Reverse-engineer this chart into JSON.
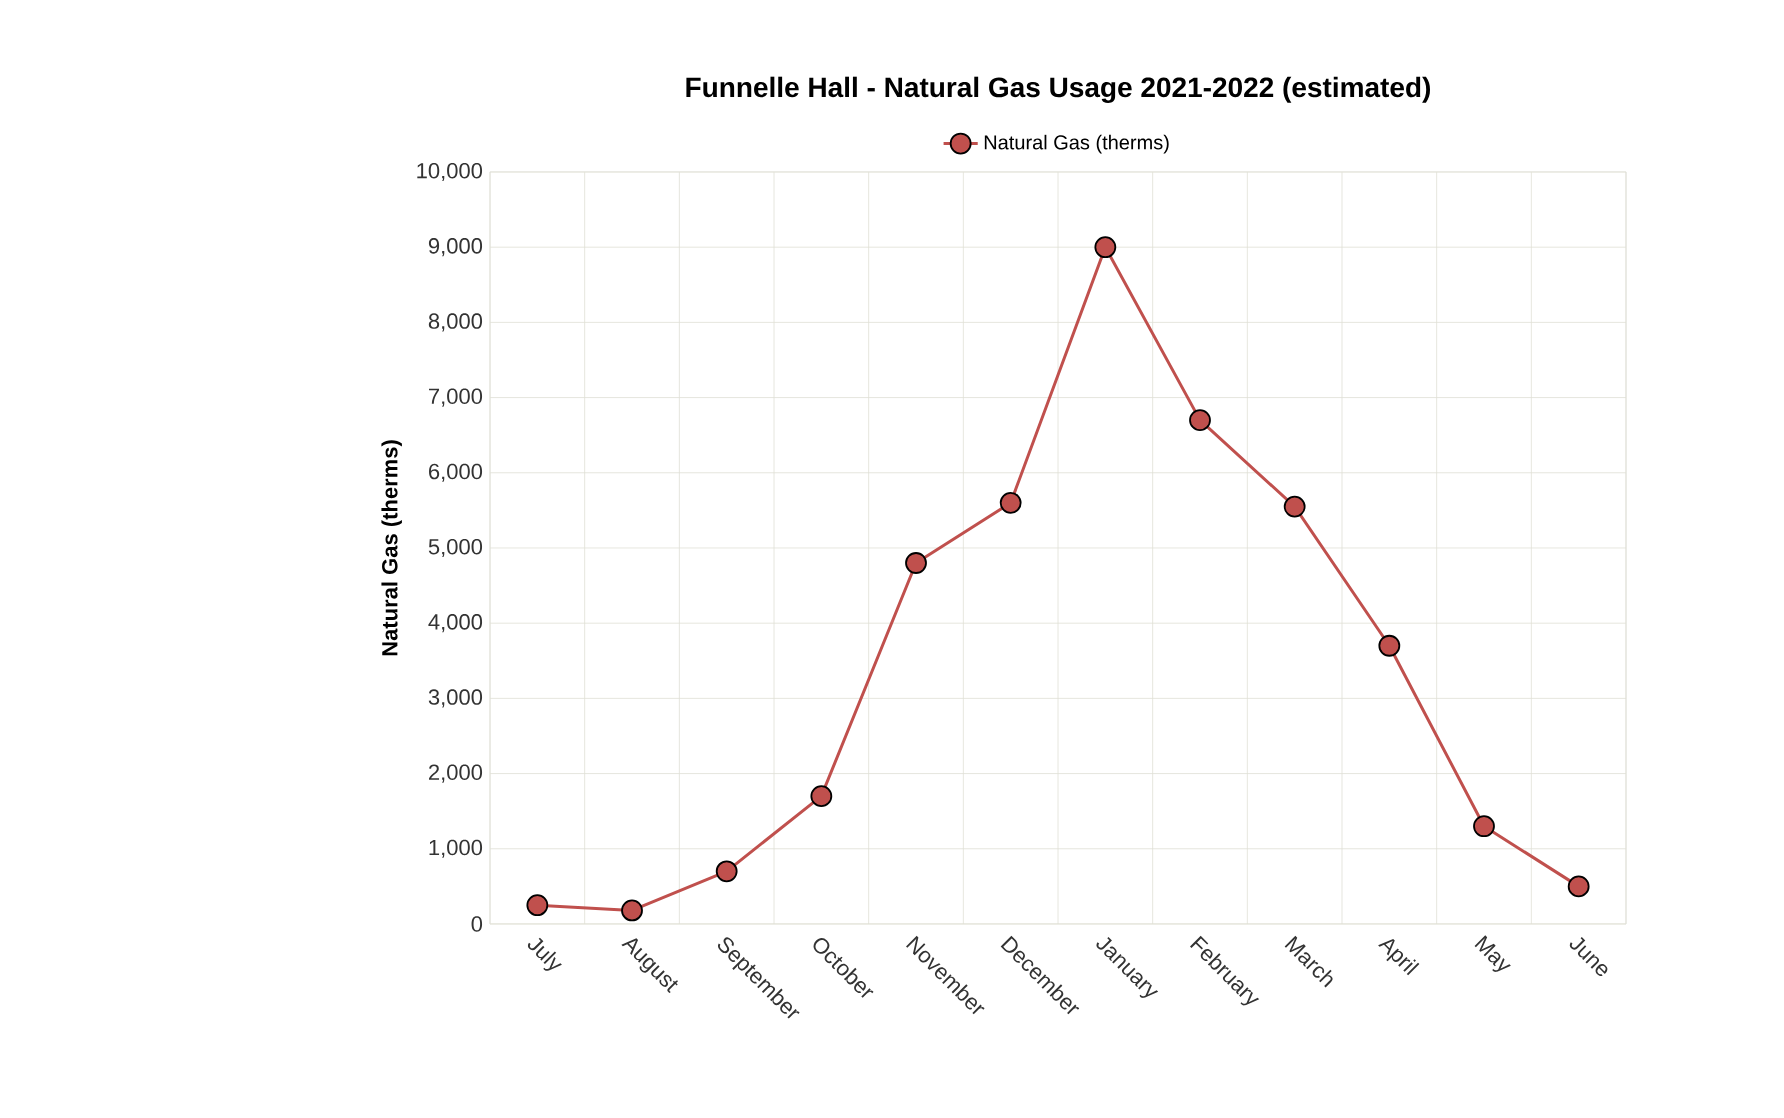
{
  "chart_data": {
    "type": "line",
    "title": "Funnelle Hall - Natural Gas Usage 2021-2022 (estimated)",
    "ylabel": "Natural Gas (therms)",
    "categories": [
      "July",
      "August",
      "September",
      "October",
      "November",
      "December",
      "January",
      "February",
      "March",
      "April",
      "May",
      "June"
    ],
    "series": [
      {
        "name": "Natural Gas (therms)",
        "color": "#c0504d",
        "values": [
          250,
          180,
          700,
          1700,
          4800,
          5600,
          9000,
          6700,
          5550,
          3700,
          1300,
          500
        ]
      }
    ],
    "ylim": [
      0,
      10000
    ],
    "yticks": [
      0,
      {
        "value": 1000,
        "label": "1,000"
      },
      {
        "value": 2000,
        "label": "2,000"
      },
      {
        "value": 3000,
        "label": "3,000"
      },
      {
        "value": 4000,
        "label": "4,000"
      },
      {
        "value": 5000,
        "label": "5,000"
      },
      {
        "value": 6000,
        "label": "6,000"
      },
      {
        "value": 7000,
        "label": "7,000"
      },
      {
        "value": 8000,
        "label": "8,000"
      },
      {
        "value": 9000,
        "label": "9,000"
      },
      {
        "value": 10000,
        "label": "10,000"
      }
    ],
    "grid": true,
    "legend": "top",
    "marker": "circle",
    "line_style": "solid"
  }
}
